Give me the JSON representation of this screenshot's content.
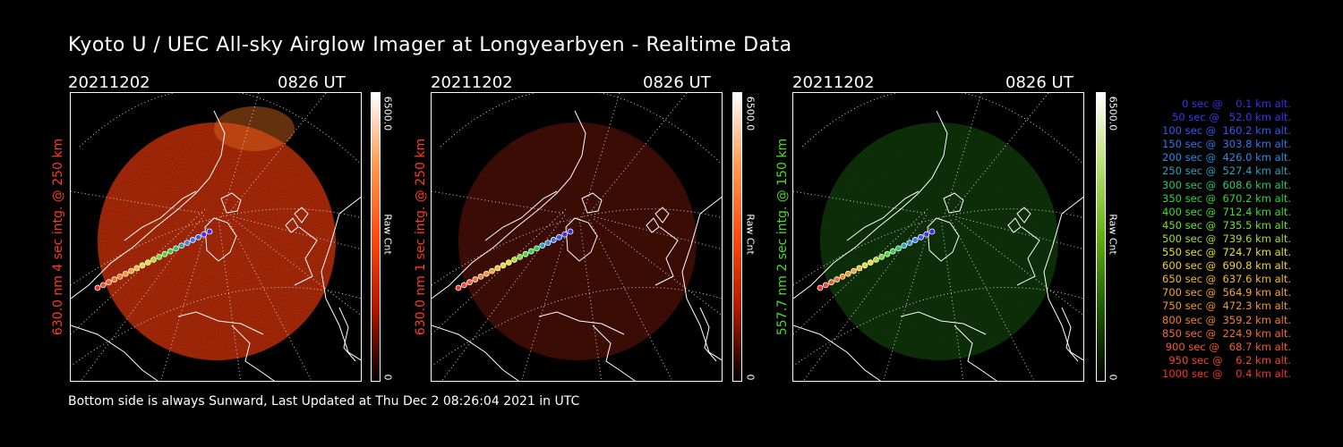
{
  "title": "Kyoto U / UEC All-sky Airglow Imager at Longyearbyen - Realtime Data",
  "panels": [
    {
      "date": "20211202",
      "time": "0826 UT",
      "ylabel": "630.0 nm 4 sec intg. @ 250 km",
      "color": "#ff3b1a",
      "disk_color": "#c62f0a",
      "disk_opacity": 0.95,
      "cbar_max": "6500.0",
      "cbar_min": "0",
      "cbar_label": "Raw Cnt",
      "cbar_gradient": "#ffffff,#ff9a50,#ff4a10,#b01800,#000000"
    },
    {
      "date": "20211202",
      "time": "0826 UT",
      "ylabel": "630.0 nm 1 sec intg. @ 250 km",
      "color": "#ff3b1a",
      "disk_color": "#4a1006",
      "disk_opacity": 0.95,
      "cbar_max": "6500.0",
      "cbar_min": "0",
      "cbar_label": "Raw Cnt",
      "cbar_gradient": "#ffffff,#ff9a50,#ff4a10,#b01800,#000000"
    },
    {
      "date": "20211202",
      "time": "0826 UT",
      "ylabel": "557.7 nm 2 sec intg. @ 150 km",
      "color": "#44e020",
      "disk_color": "#0f3a0a",
      "disk_opacity": 0.95,
      "cbar_max": "6500.0",
      "cbar_min": "0",
      "cbar_label": "Raw Cnt",
      "cbar_gradient": "#ffffff,#b8e070,#60b010,#1c5a00,#000000"
    }
  ],
  "legend": [
    {
      "text": "0 sec @    0.1 km alt.",
      "color": "#3b2cf0"
    },
    {
      "text": "50 sec @   52.0 km alt.",
      "color": "#3b34f5"
    },
    {
      "text": "100 sec @  160.2 km alt.",
      "color": "#2f5cf0"
    },
    {
      "text": "150 sec @  303.8 km alt.",
      "color": "#2f78f0"
    },
    {
      "text": "200 sec @  426.0 km alt.",
      "color": "#2c8ce6"
    },
    {
      "text": "250 sec @  527.4 km alt.",
      "color": "#2aa3b8"
    },
    {
      "text": "300 sec @  608.6 km alt.",
      "color": "#2bc86a"
    },
    {
      "text": "350 sec @  670.2 km alt.",
      "color": "#2ed63b"
    },
    {
      "text": "400 sec @  712.4 km alt.",
      "color": "#3de02a"
    },
    {
      "text": "450 sec @  735.5 km alt.",
      "color": "#70e02a"
    },
    {
      "text": "500 sec @  739.6 km alt.",
      "color": "#a8e02a"
    },
    {
      "text": "550 sec @  724.7 km alt.",
      "color": "#e6e22a"
    },
    {
      "text": "600 sec @  690.8 km alt.",
      "color": "#f2d42a"
    },
    {
      "text": "650 sec @  637.6 km alt.",
      "color": "#f5bc2a"
    },
    {
      "text": "700 sec @  564.9 km alt.",
      "color": "#f5a82a"
    },
    {
      "text": "750 sec @  472.3 km alt.",
      "color": "#f5962a"
    },
    {
      "text": "800 sec @  359.2 km alt.",
      "color": "#f5822a"
    },
    {
      "text": "850 sec @  224.9 km alt.",
      "color": "#f56e2a"
    },
    {
      "text": "900 sec @   68.7 km alt.",
      "color": "#f55a2a"
    },
    {
      "text": "950 sec @    6.2 km alt.",
      "color": "#f5462a"
    },
    {
      "text": "1000 sec @    0.4 km alt.",
      "color": "#f5342a"
    }
  ],
  "footer": "Bottom side is always Sunward, Last Updated at Thu Dec  2 08:26:04 2021 in UTC"
}
